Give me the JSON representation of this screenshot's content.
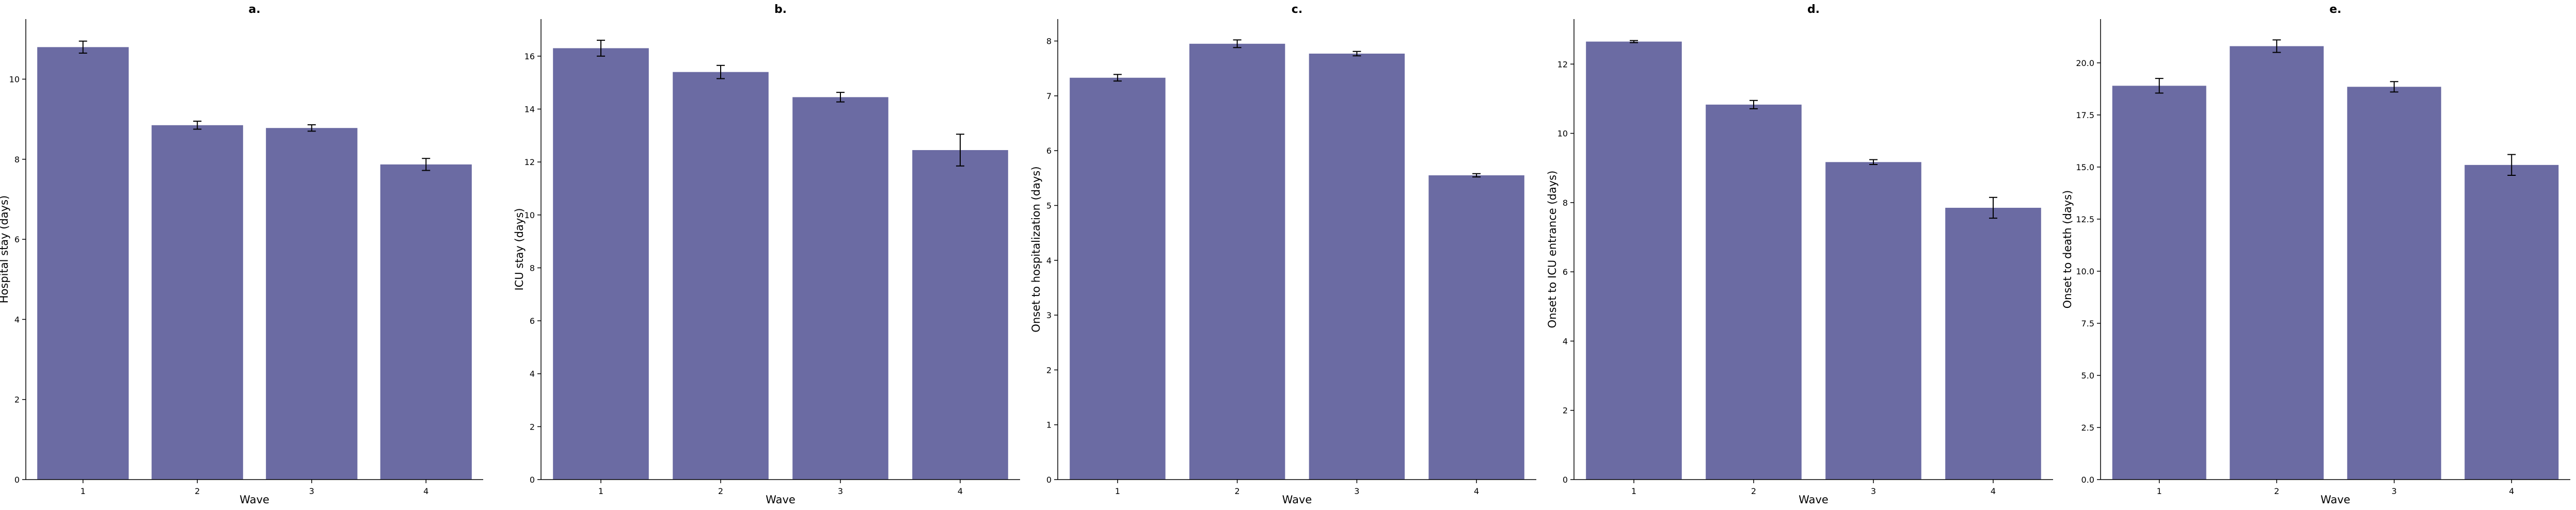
{
  "colors": {
    "bar": "#6b6ba3",
    "axis": "#000000",
    "errorbar": "#000000"
  },
  "chart_data": [
    {
      "type": "bar",
      "title": "a.",
      "xlabel": "Wave",
      "ylabel": "Hospital stay (days)",
      "categories": [
        "1",
        "2",
        "3",
        "4"
      ],
      "values": [
        10.8,
        8.85,
        8.78,
        7.87
      ],
      "error": [
        0.15,
        0.1,
        0.08,
        0.15
      ],
      "ylim": [
        0,
        11.5
      ],
      "yticks": [
        0,
        2,
        4,
        6,
        8,
        10
      ],
      "ytick_labels": [
        "0",
        "2",
        "4",
        "6",
        "8",
        "10"
      ]
    },
    {
      "type": "bar",
      "title": "b.",
      "xlabel": "Wave",
      "ylabel": "ICU stay (days)",
      "categories": [
        "1",
        "2",
        "3",
        "4"
      ],
      "values": [
        16.3,
        15.4,
        14.45,
        12.45
      ],
      "error": [
        0.3,
        0.25,
        0.18,
        0.6
      ],
      "ylim": [
        0,
        17.4
      ],
      "yticks": [
        0,
        2,
        4,
        6,
        8,
        10,
        12,
        14,
        16
      ],
      "ytick_labels": [
        "0",
        "2",
        "4",
        "6",
        "8",
        "10",
        "12",
        "14",
        "16"
      ]
    },
    {
      "type": "bar",
      "title": "c.",
      "xlabel": "Wave",
      "ylabel": "Onset to hospitalization (days)",
      "categories": [
        "1",
        "2",
        "3",
        "4"
      ],
      "values": [
        7.33,
        7.95,
        7.77,
        5.55
      ],
      "error": [
        0.06,
        0.07,
        0.04,
        0.03
      ],
      "ylim": [
        0,
        8.4
      ],
      "yticks": [
        0,
        1,
        2,
        3,
        4,
        5,
        6,
        7,
        8
      ],
      "ytick_labels": [
        "0",
        "1",
        "2",
        "3",
        "4",
        "5",
        "6",
        "7",
        "8"
      ]
    },
    {
      "type": "bar",
      "title": "d.",
      "xlabel": "Wave",
      "ylabel": "Onset to ICU entrance (days)",
      "categories": [
        "1",
        "2",
        "3",
        "4"
      ],
      "values": [
        12.65,
        10.83,
        9.17,
        7.85
      ],
      "error": [
        0.03,
        0.12,
        0.07,
        0.3
      ],
      "ylim": [
        0,
        13.3
      ],
      "yticks": [
        0,
        2,
        4,
        6,
        8,
        10,
        12
      ],
      "ytick_labels": [
        "0",
        "2",
        "4",
        "6",
        "8",
        "10",
        "12"
      ]
    },
    {
      "type": "bar",
      "title": "e.",
      "xlabel": "Wave",
      "ylabel": "Onset to death (days)",
      "categories": [
        "1",
        "2",
        "3",
        "4"
      ],
      "values": [
        18.9,
        20.8,
        18.85,
        15.1
      ],
      "error": [
        0.35,
        0.3,
        0.25,
        0.5
      ],
      "ylim": [
        0,
        22.1
      ],
      "yticks": [
        0,
        2.5,
        5,
        7.5,
        10,
        12.5,
        15,
        17.5,
        20
      ],
      "ytick_labels": [
        "0.0",
        "2.5",
        "5.0",
        "7.5",
        "10.0",
        "12.5",
        "15.0",
        "17.5",
        "20.0"
      ]
    }
  ]
}
